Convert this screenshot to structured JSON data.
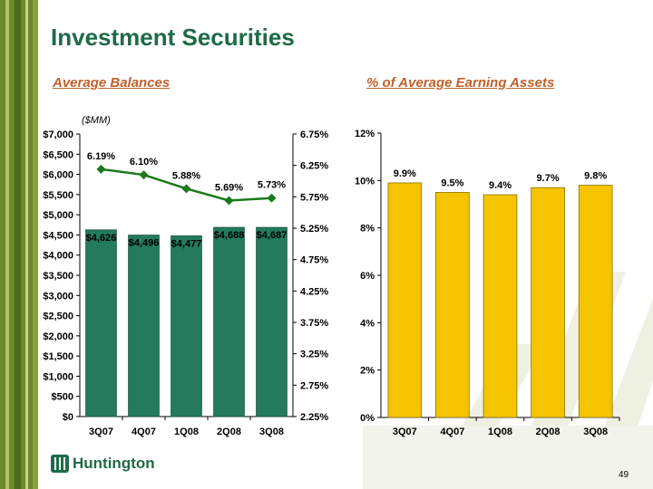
{
  "header": {
    "title": "Investment Securities"
  },
  "left_subtitle": "Average Balances",
  "right_subtitle": "% of Average Earning Assets",
  "unit_label": "($MM)",
  "colors": {
    "green_bar": "#237a5c",
    "yellow_bar": "#f5c400",
    "line": "#1b7a1b",
    "title": "#1e6b47",
    "accent": "#c0612a"
  },
  "footer": {
    "logo_text": "Huntington",
    "page_number": "49"
  },
  "chart_data": [
    {
      "type": "bar",
      "categories": [
        "3Q07",
        "4Q07",
        "1Q08",
        "2Q08",
        "3Q08"
      ],
      "values": [
        4626,
        4496,
        4477,
        4688,
        4687
      ],
      "value_labels": [
        "$4,626",
        "$4,496",
        "$4,477",
        "$4,688",
        "$4,687"
      ],
      "ylim": [
        0,
        7000
      ],
      "yticks": [
        "$0",
        "$500",
        "$1,000",
        "$1,500",
        "$2,000",
        "$2,500",
        "$3,000",
        "$3,500",
        "$4,000",
        "$4,500",
        "$5,000",
        "$5,500",
        "$6,000",
        "$6,500",
        "$7,000"
      ],
      "line_series": {
        "type": "line",
        "values": [
          6.19,
          6.1,
          5.88,
          5.69,
          5.73
        ],
        "value_labels": [
          "6.19%",
          "6.10%",
          "5.88%",
          "5.69%",
          "5.73%"
        ],
        "ylim": [
          2.25,
          6.75
        ],
        "yticks": [
          "2.25%",
          "2.75%",
          "3.25%",
          "3.75%",
          "4.25%",
          "4.75%",
          "5.25%",
          "5.75%",
          "6.25%",
          "6.75%"
        ]
      }
    },
    {
      "type": "bar",
      "categories": [
        "3Q07",
        "4Q07",
        "1Q08",
        "2Q08",
        "3Q08"
      ],
      "values": [
        9.9,
        9.5,
        9.4,
        9.7,
        9.8
      ],
      "value_labels": [
        "9.9%",
        "9.5%",
        "9.4%",
        "9.7%",
        "9.8%"
      ],
      "ylim": [
        0,
        12
      ],
      "yticks": [
        "0%",
        "2%",
        "4%",
        "6%",
        "8%",
        "10%",
        "12%"
      ]
    }
  ]
}
